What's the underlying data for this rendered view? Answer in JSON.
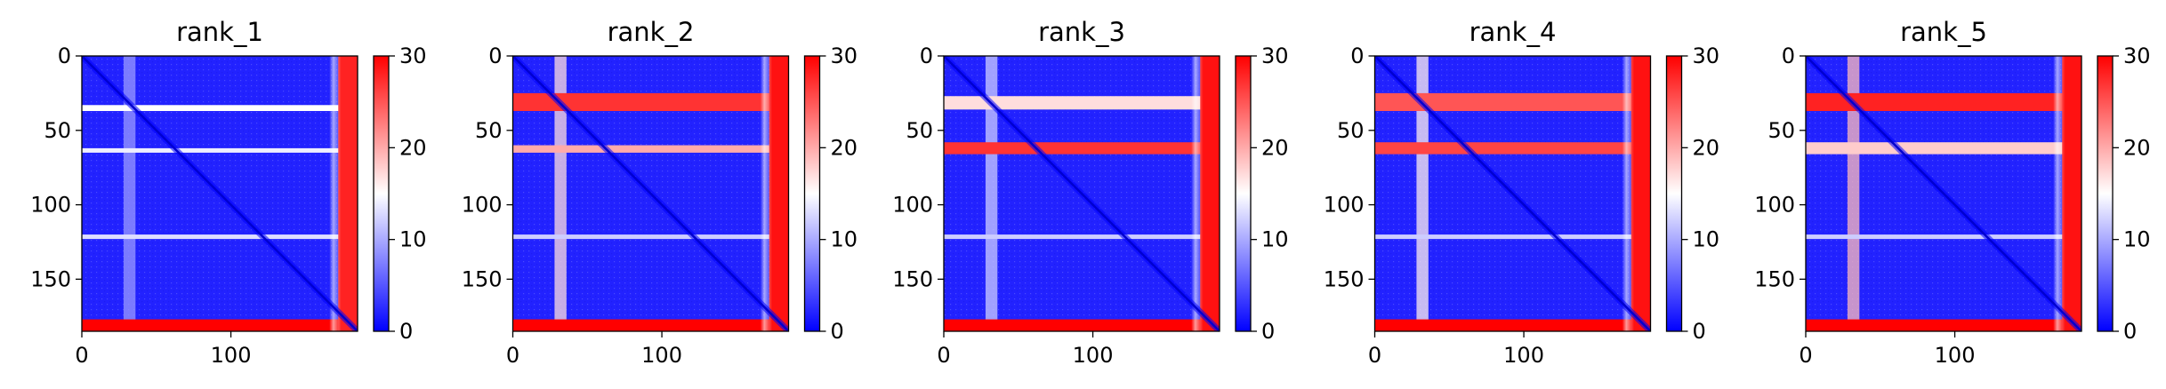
{
  "colormap": {
    "name": "bwr",
    "low": "#0000ff",
    "mid": "#ffffff",
    "high": "#ff0000"
  },
  "chart_data": [
    {
      "type": "heatmap",
      "title": "rank_1",
      "matrix_size": 185,
      "xlim": [
        0,
        185
      ],
      "ylim": [
        185,
        0
      ],
      "xticks": [
        0,
        100
      ],
      "yticks": [
        0,
        50,
        100,
        150
      ],
      "color_range": [
        0,
        30
      ],
      "colorbar_ticks": [
        0,
        10,
        20,
        30
      ],
      "bands": [
        {
          "rows": [
            177,
            185
          ],
          "value": 30
        },
        {
          "rows": [
            33,
            37
          ],
          "value": 15
        },
        {
          "rows": [
            62,
            65
          ],
          "value": 14
        },
        {
          "rows": [
            120,
            123
          ],
          "value": 13
        }
      ],
      "vertical_bands": [
        {
          "cols": [
            28,
            36
          ],
          "value": 9
        }
      ],
      "side_band": {
        "cols": [
          172,
          185
        ],
        "value": 28
      }
    },
    {
      "type": "heatmap",
      "title": "rank_2",
      "matrix_size": 185,
      "xlim": [
        0,
        185
      ],
      "ylim": [
        185,
        0
      ],
      "xticks": [
        0,
        100
      ],
      "yticks": [
        0,
        50,
        100,
        150
      ],
      "color_range": [
        0,
        30
      ],
      "colorbar_ticks": [
        0,
        10,
        20,
        30
      ],
      "bands": [
        {
          "rows": [
            177,
            185
          ],
          "value": 30
        },
        {
          "rows": [
            25,
            37
          ],
          "value": 27
        },
        {
          "rows": [
            60,
            65
          ],
          "value": 20
        },
        {
          "rows": [
            120,
            123
          ],
          "value": 12
        }
      ],
      "vertical_bands": [
        {
          "cols": [
            28,
            36
          ],
          "value": 17
        }
      ],
      "side_band": {
        "cols": [
          172,
          185
        ],
        "value": 29
      }
    },
    {
      "type": "heatmap",
      "title": "rank_3",
      "matrix_size": 185,
      "xlim": [
        0,
        185
      ],
      "ylim": [
        185,
        0
      ],
      "xticks": [
        0,
        100
      ],
      "yticks": [
        0,
        50,
        100,
        150
      ],
      "color_range": [
        0,
        30
      ],
      "colorbar_ticks": [
        0,
        10,
        20,
        30
      ],
      "bands": [
        {
          "rows": [
            177,
            185
          ],
          "value": 30
        },
        {
          "rows": [
            27,
            36
          ],
          "value": 17
        },
        {
          "rows": [
            58,
            66
          ],
          "value": 27
        },
        {
          "rows": [
            120,
            123
          ],
          "value": 12
        }
      ],
      "vertical_bands": [
        {
          "cols": [
            28,
            36
          ],
          "value": 12
        }
      ],
      "side_band": {
        "cols": [
          172,
          185
        ],
        "value": 29
      }
    },
    {
      "type": "heatmap",
      "title": "rank_4",
      "matrix_size": 185,
      "xlim": [
        0,
        185
      ],
      "ylim": [
        185,
        0
      ],
      "xticks": [
        0,
        100
      ],
      "yticks": [
        0,
        50,
        100,
        150
      ],
      "color_range": [
        0,
        30
      ],
      "colorbar_ticks": [
        0,
        10,
        20,
        30
      ],
      "bands": [
        {
          "rows": [
            177,
            185
          ],
          "value": 30
        },
        {
          "rows": [
            25,
            37
          ],
          "value": 25
        },
        {
          "rows": [
            58,
            66
          ],
          "value": 26
        },
        {
          "rows": [
            120,
            123
          ],
          "value": 12
        }
      ],
      "vertical_bands": [
        {
          "cols": [
            28,
            36
          ],
          "value": 16
        }
      ],
      "side_band": {
        "cols": [
          172,
          185
        ],
        "value": 29
      }
    },
    {
      "type": "heatmap",
      "title": "rank_5",
      "matrix_size": 185,
      "xlim": [
        0,
        185
      ],
      "ylim": [
        185,
        0
      ],
      "xticks": [
        0,
        100
      ],
      "yticks": [
        0,
        50,
        100,
        150
      ],
      "color_range": [
        0,
        30
      ],
      "colorbar_ticks": [
        0,
        10,
        20,
        30
      ],
      "bands": [
        {
          "rows": [
            177,
            185
          ],
          "value": 30
        },
        {
          "rows": [
            25,
            37
          ],
          "value": 28
        },
        {
          "rows": [
            58,
            66
          ],
          "value": 18
        },
        {
          "rows": [
            120,
            123
          ],
          "value": 12
        }
      ],
      "vertical_bands": [
        {
          "cols": [
            28,
            36
          ],
          "value": 19
        }
      ],
      "side_band": {
        "cols": [
          172,
          185
        ],
        "value": 29
      }
    }
  ]
}
